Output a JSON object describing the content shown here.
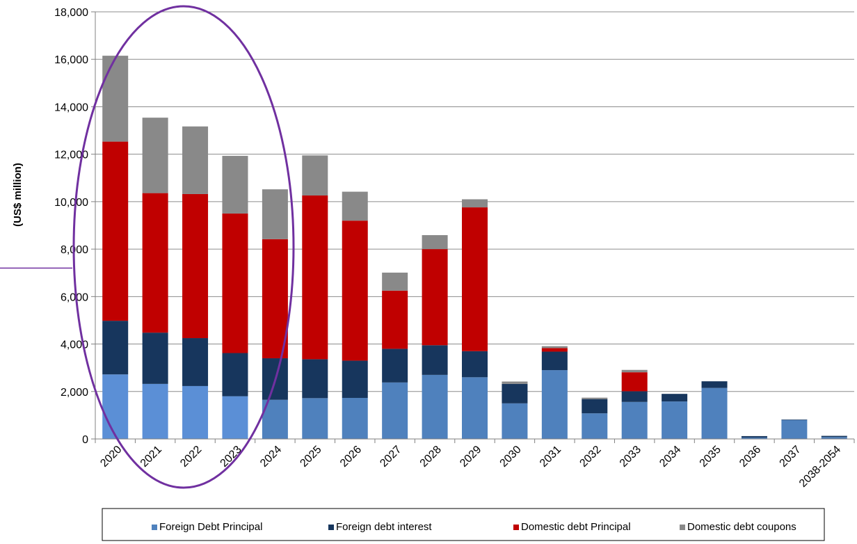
{
  "chart_data": {
    "type": "bar",
    "stacked": true,
    "title": "",
    "xlabel": "",
    "ylabel": "(US$ million)",
    "ylim": [
      0,
      18000
    ],
    "yticks": [
      0,
      2000,
      4000,
      6000,
      8000,
      10000,
      12000,
      14000,
      16000,
      18000
    ],
    "ytick_labels": [
      "0",
      "2,000",
      "4,000",
      "6,000",
      "8,000",
      "10,000",
      "12,000",
      "14,000",
      "16,000",
      "18,000"
    ],
    "grid": true,
    "legend_position": "bottom",
    "categories": [
      "2020",
      "2021",
      "2022",
      "2023",
      "2024",
      "2025",
      "2026",
      "2027",
      "2028",
      "2029",
      "2030",
      "2031",
      "2032",
      "2033",
      "2034",
      "2035",
      "2036",
      "2037",
      "2038-2054"
    ],
    "series": [
      {
        "name": "Foreign Debt Principal",
        "color": "#4f81bd",
        "highlight_color": "#5b8fd6",
        "values": [
          2720,
          2320,
          2230,
          1800,
          1650,
          1720,
          1730,
          2380,
          2700,
          2600,
          1500,
          2900,
          1080,
          1560,
          1580,
          2150,
          60,
          800,
          80
        ]
      },
      {
        "name": "Foreign debt interest",
        "color": "#17365d",
        "values": [
          2260,
          2160,
          2020,
          1820,
          1750,
          1640,
          1570,
          1420,
          1250,
          1100,
          820,
          780,
          600,
          450,
          320,
          280,
          60,
          20,
          50
        ]
      },
      {
        "name": "Domestic debt Principal",
        "color": "#c00000",
        "values": [
          7550,
          5880,
          6070,
          5880,
          5020,
          6900,
          5900,
          2450,
          4050,
          6060,
          0,
          150,
          0,
          800,
          0,
          0,
          0,
          0,
          0
        ]
      },
      {
        "name": "Domestic debt coupons",
        "color": "#898989",
        "values": [
          3620,
          3180,
          2850,
          2430,
          2100,
          1690,
          1220,
          760,
          590,
          340,
          100,
          80,
          60,
          100,
          0,
          0,
          0,
          0,
          0
        ]
      }
    ],
    "highlighted_categories": [
      "2020",
      "2021",
      "2022",
      "2023"
    ],
    "annotations": [
      {
        "type": "ellipse",
        "color": "#7030a0",
        "covers": [
          "2020",
          "2021",
          "2022",
          "2023",
          "2024"
        ]
      },
      {
        "type": "line",
        "color": "#7030a0",
        "at_y": 7200
      }
    ]
  }
}
